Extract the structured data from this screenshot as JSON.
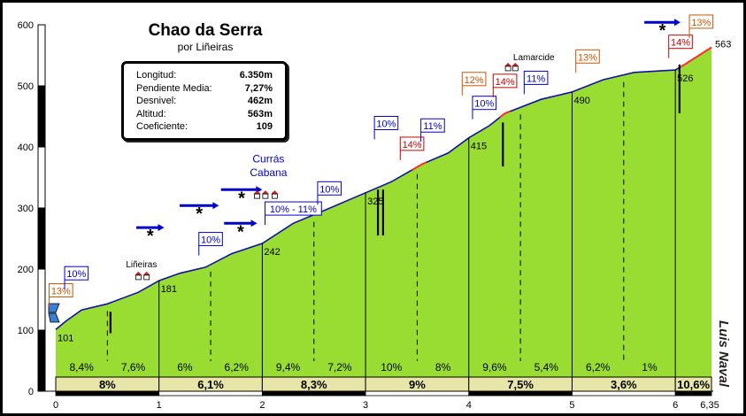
{
  "chart_data": {
    "type": "area",
    "title": "Chao da Serra",
    "subtitle": "por Liñeiras",
    "stats": [
      {
        "label": "Longitud:",
        "value": "6.350m"
      },
      {
        "label": "Pendiente Media:",
        "value": "7,27%"
      },
      {
        "label": "Desnivel:",
        "value": "462m"
      },
      {
        "label": "Altitud:",
        "value": "563m"
      },
      {
        "label": "Coeficiente:",
        "value": "109"
      }
    ],
    "y_ticks": [
      "0",
      "100",
      "200",
      "300",
      "400",
      "500",
      "600"
    ],
    "x_ticks": [
      "0",
      "1",
      "2",
      "3",
      "4",
      "5",
      "6",
      "6,35"
    ],
    "ylim": [
      0,
      600
    ],
    "xlim": [
      0,
      6.35
    ],
    "profile": [
      {
        "x": 0,
        "y": 101
      },
      {
        "x": 0.1,
        "y": 115
      },
      {
        "x": 0.25,
        "y": 133
      },
      {
        "x": 0.5,
        "y": 143
      },
      {
        "x": 0.8,
        "y": 162
      },
      {
        "x": 1.0,
        "y": 181
      },
      {
        "x": 1.2,
        "y": 193
      },
      {
        "x": 1.45,
        "y": 203
      },
      {
        "x": 1.7,
        "y": 225
      },
      {
        "x": 2.0,
        "y": 242
      },
      {
        "x": 2.3,
        "y": 275
      },
      {
        "x": 2.6,
        "y": 296
      },
      {
        "x": 3.0,
        "y": 325
      },
      {
        "x": 3.25,
        "y": 343
      },
      {
        "x": 3.55,
        "y": 372
      },
      {
        "x": 3.8,
        "y": 390
      },
      {
        "x": 4.0,
        "y": 415
      },
      {
        "x": 4.2,
        "y": 435
      },
      {
        "x": 4.35,
        "y": 455
      },
      {
        "x": 4.7,
        "y": 478
      },
      {
        "x": 5.0,
        "y": 490
      },
      {
        "x": 5.3,
        "y": 510
      },
      {
        "x": 5.6,
        "y": 522
      },
      {
        "x": 6.0,
        "y": 526
      },
      {
        "x": 6.1,
        "y": 536
      },
      {
        "x": 6.35,
        "y": 563
      }
    ],
    "km_points": [
      {
        "x": 0,
        "y": 101,
        "label": "101"
      },
      {
        "x": 1,
        "y": 181,
        "label": "181"
      },
      {
        "x": 2,
        "y": 242,
        "label": "242"
      },
      {
        "x": 3,
        "y": 325,
        "label": "325"
      },
      {
        "x": 4,
        "y": 415,
        "label": "415"
      },
      {
        "x": 5,
        "y": 490,
        "label": "490"
      },
      {
        "x": 6,
        "y": 526,
        "label": "526"
      },
      {
        "x": 6.35,
        "y": 563,
        "label": "563"
      }
    ],
    "half_km_slopes": [
      "8,4%",
      "7,6%",
      "6%",
      "6,2%",
      "9,4%",
      "7,2%",
      "10%",
      "8%",
      "9,6%",
      "5,4%",
      "6,2%",
      "1%"
    ],
    "km_slopes": [
      "8%",
      "6,1%",
      "8,3%",
      "9%",
      "7,5%",
      "3,6%",
      "10,6%"
    ],
    "slope_flags": [
      {
        "label": "13%",
        "color": "#cc5500",
        "x": 0.05,
        "y": 163
      },
      {
        "label": "10%",
        "color": "#0000cc",
        "x": 0.2,
        "y": 191
      },
      {
        "label": "10%",
        "color": "#0000cc",
        "x": 1.5,
        "y": 247
      },
      {
        "label": "10% - 11%",
        "color": "#0000cc",
        "x": 2.3,
        "y": 297
      },
      {
        "label": "10%",
        "color": "#0000cc",
        "x": 2.65,
        "y": 330
      },
      {
        "label": "10%",
        "color": "#0000cc",
        "x": 3.2,
        "y": 437
      },
      {
        "label": "14%",
        "color": "#cc0000",
        "x": 3.45,
        "y": 403
      },
      {
        "label": "11%",
        "color": "#0000cc",
        "x": 3.65,
        "y": 433
      },
      {
        "label": "10%",
        "color": "#0000cc",
        "x": 4.15,
        "y": 470
      },
      {
        "label": "12%",
        "color": "#cc5500",
        "x": 4.05,
        "y": 509
      },
      {
        "label": "14%",
        "color": "#cc0000",
        "x": 4.35,
        "y": 506
      },
      {
        "label": "11%",
        "color": "#0000cc",
        "x": 4.65,
        "y": 511
      },
      {
        "label": "13%",
        "color": "#cc5500",
        "x": 5.15,
        "y": 546
      },
      {
        "label": "14%",
        "color": "#cc0000",
        "x": 6.05,
        "y": 570
      },
      {
        "label": "13%",
        "color": "#cc5500",
        "x": 6.25,
        "y": 603
      }
    ],
    "places": [
      {
        "label": "Liñeiras",
        "x": 0.83,
        "y": 203
      },
      {
        "label": "Currás",
        "x": 2.06,
        "y": 375
      },
      {
        "label": "Cabana",
        "x": 2.06,
        "y": 352
      },
      {
        "label": "Lamarcide",
        "x": 4.63,
        "y": 542
      }
    ],
    "author": "Luis Naval",
    "colors": {
      "fill": "#99dd33",
      "band": "#e8e5a8",
      "blue": "#0000cc",
      "steep": "#ff3030"
    }
  }
}
